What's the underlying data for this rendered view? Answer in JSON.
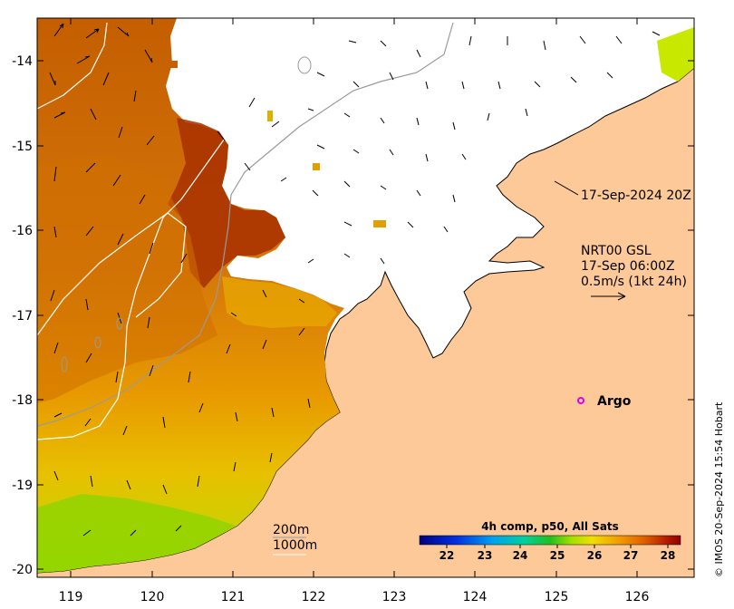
{
  "map": {
    "x_ticks": [
      "119",
      "120",
      "121",
      "122",
      "123",
      "124",
      "125",
      "126"
    ],
    "y_ticks": [
      "-14",
      "-15",
      "-16",
      "-17",
      "-18",
      "-19",
      "-20"
    ],
    "timestamp_label": "17-Sep-2024 20Z",
    "currents_label_line1": "NRT00 GSL",
    "currents_label_line2": "17-Sep 06:00Z",
    "currents_label_line3": "0.5m/s (1kt 24h)",
    "argo_label": "Argo",
    "isobath_200": "200m",
    "isobath_1000": "1000m",
    "colorbar_title": "4h comp, p50, All Sats",
    "colorbar_ticks": [
      "22",
      "23",
      "24",
      "25",
      "26",
      "27",
      "28"
    ],
    "credit": "© IMOS 20-Sep-2024 15:54 Hobart",
    "colors": {
      "land": "#fdc998",
      "warm": "#cc6a00",
      "hot": "#a32600",
      "cool": "#e8b000",
      "green": "#88d000",
      "argo": "#e000e0"
    }
  }
}
